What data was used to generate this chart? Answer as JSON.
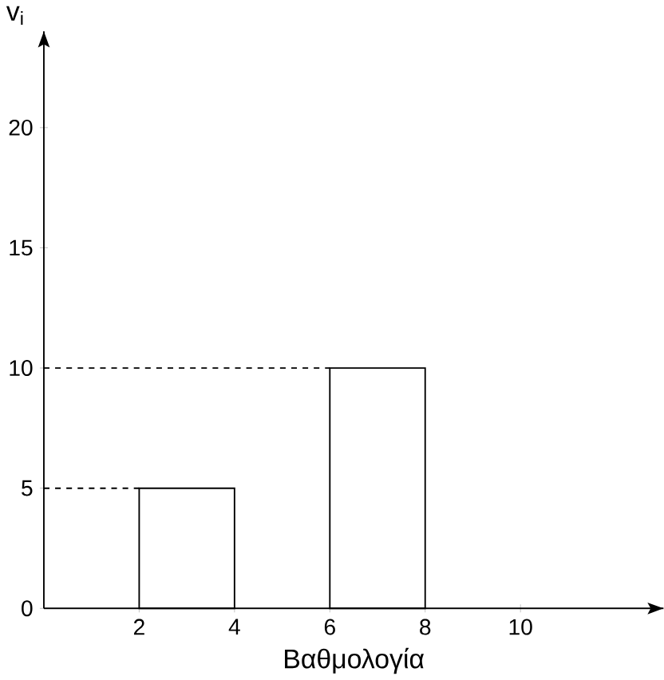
{
  "chart_data": {
    "type": "histogram",
    "xlabel": "Βαθμολογία",
    "ylabel": "v$_{i}$",
    "bins": [
      2,
      4,
      6,
      8
    ],
    "values": [
      5,
      0,
      10
    ],
    "color": "#000000",
    "xlim": [
      0,
      13
    ],
    "ylim": [
      0,
      24
    ],
    "xticks": [
      2,
      4,
      6,
      8,
      10
    ],
    "yticks": [
      0,
      5,
      10,
      15,
      20
    ],
    "ref_lines": [
      {
        "axis": "y",
        "value": 5,
        "line_style": "dashed"
      },
      {
        "axis": "y",
        "value": 10,
        "line_style": "dashed"
      }
    ]
  }
}
